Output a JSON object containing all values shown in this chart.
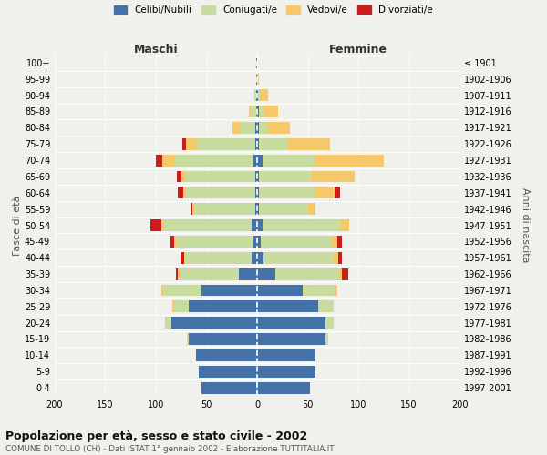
{
  "age_groups": [
    "100+",
    "95-99",
    "90-94",
    "85-89",
    "80-84",
    "75-79",
    "70-74",
    "65-69",
    "60-64",
    "55-59",
    "50-54",
    "45-49",
    "40-44",
    "35-39",
    "30-34",
    "25-29",
    "20-24",
    "15-19",
    "10-14",
    "5-9",
    "0-4"
  ],
  "birth_years": [
    "≤ 1901",
    "1902-1906",
    "1907-1911",
    "1912-1916",
    "1917-1921",
    "1922-1926",
    "1927-1931",
    "1932-1936",
    "1937-1941",
    "1942-1946",
    "1947-1951",
    "1952-1956",
    "1957-1961",
    "1962-1966",
    "1967-1971",
    "1972-1976",
    "1977-1981",
    "1982-1986",
    "1987-1991",
    "1992-1996",
    "1997-2001"
  ],
  "male_celibi": [
    1,
    1,
    1,
    1,
    2,
    2,
    4,
    2,
    2,
    2,
    5,
    4,
    5,
    18,
    55,
    68,
    85,
    68,
    60,
    58,
    55
  ],
  "male_coniugati": [
    0,
    0,
    2,
    5,
    14,
    58,
    78,
    68,
    68,
    60,
    88,
    76,
    65,
    58,
    38,
    14,
    5,
    1,
    0,
    0,
    0
  ],
  "male_vedovi": [
    0,
    0,
    0,
    2,
    8,
    10,
    12,
    5,
    3,
    2,
    2,
    2,
    2,
    2,
    2,
    2,
    1,
    0,
    0,
    0,
    0
  ],
  "male_divorziati": [
    0,
    0,
    0,
    0,
    0,
    4,
    6,
    4,
    5,
    2,
    10,
    4,
    4,
    2,
    0,
    0,
    0,
    0,
    0,
    0,
    0
  ],
  "fem_nubili": [
    0,
    0,
    1,
    2,
    2,
    2,
    5,
    2,
    2,
    2,
    5,
    4,
    6,
    18,
    45,
    60,
    68,
    68,
    58,
    58,
    52
  ],
  "fem_coniugate": [
    0,
    0,
    2,
    5,
    8,
    28,
    52,
    52,
    55,
    48,
    78,
    70,
    70,
    62,
    32,
    16,
    8,
    2,
    0,
    0,
    0
  ],
  "fem_vedove": [
    0,
    2,
    8,
    14,
    22,
    42,
    68,
    42,
    20,
    8,
    8,
    5,
    4,
    4,
    2,
    0,
    0,
    0,
    0,
    0,
    0
  ],
  "fem_divorziate": [
    0,
    0,
    0,
    0,
    0,
    0,
    0,
    0,
    5,
    0,
    0,
    5,
    4,
    6,
    0,
    0,
    0,
    0,
    0,
    0,
    0
  ],
  "color_celibi": "#4472a8",
  "color_coniugati": "#c8dca0",
  "color_vedovi": "#f5c96a",
  "color_divorziati": "#cc1c1c",
  "legend_labels": [
    "Celibi/Nubili",
    "Coniugati/e",
    "Vedovi/e",
    "Divorziati/e"
  ],
  "bg_color": "#f0f0ec",
  "title": "Popolazione per età, sesso e stato civile - 2002",
  "subtitle": "COMUNE DI TOLLO (CH) - Dati ISTAT 1° gennaio 2002 - Elaborazione TUTTITALIA.IT",
  "label_maschi": "Maschi",
  "label_femmine": "Femmine",
  "label_fasce": "Fasce di età",
  "label_anni": "Anni di nascita"
}
